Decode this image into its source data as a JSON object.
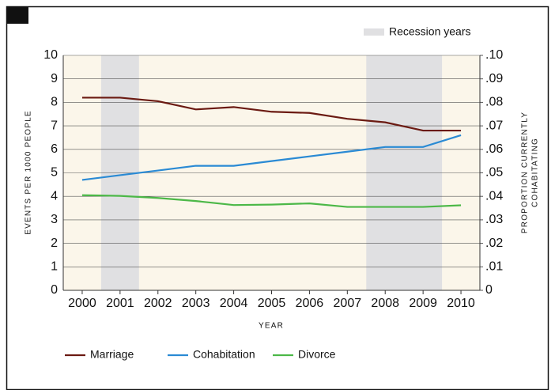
{
  "chart_data": {
    "type": "line",
    "x": [
      2000,
      2001,
      2002,
      2003,
      2004,
      2005,
      2006,
      2007,
      2008,
      2009,
      2010
    ],
    "xlim": [
      1999.5,
      2010.5
    ],
    "xticks": [
      2000,
      2001,
      2002,
      2003,
      2004,
      2005,
      2006,
      2007,
      2008,
      2009,
      2010
    ],
    "xlabel": "YEAR",
    "ylabel": "EVENTS PER 1000 PEOPLE",
    "y2label": [
      "PROPORTION CURRENTLY",
      "COHABITATING"
    ],
    "ylim": [
      0,
      10
    ],
    "yticks": [
      0,
      1,
      2,
      3,
      4,
      5,
      6,
      7,
      8,
      9,
      10
    ],
    "y2lim": [
      0,
      0.1
    ],
    "y2ticks": [
      0,
      {
        "value": 0.01,
        "label": ".01"
      },
      {
        "value": 0.02,
        "label": ".02"
      },
      {
        "value": 0.03,
        "label": ".03"
      },
      {
        "value": 0.04,
        "label": ".04"
      },
      {
        "value": 0.05,
        "label": ".05"
      },
      {
        "value": 0.06,
        "label": ".06"
      },
      {
        "value": 0.07,
        "label": ".07"
      },
      {
        "value": 0.08,
        "label": ".08"
      },
      {
        "value": 0.09,
        "label": ".09"
      },
      {
        "value": 0.1,
        "label": ".10"
      }
    ],
    "grid": true,
    "shaded": {
      "name": "Recession years",
      "color": "#e0e0e2",
      "ranges": [
        [
          2000.5,
          2001.5
        ],
        [
          2007.5,
          2009.5
        ]
      ]
    },
    "series": [
      {
        "name": "Marriage",
        "color": "#6b1a12",
        "values": [
          8.2,
          8.2,
          8.05,
          7.7,
          7.8,
          7.6,
          7.55,
          7.3,
          7.15,
          6.8,
          6.8
        ]
      },
      {
        "name": "Cohabitation",
        "color": "#2a8ad4",
        "axis": "y2",
        "values": [
          0.047,
          0.049,
          0.051,
          0.053,
          0.053,
          0.055,
          0.057,
          0.059,
          0.061,
          0.061,
          0.066
        ]
      },
      {
        "name": "Divorce",
        "color": "#4cb848",
        "values": [
          4.05,
          4.02,
          3.93,
          3.8,
          3.63,
          3.65,
          3.7,
          3.55,
          3.55,
          3.55,
          3.62
        ]
      }
    ]
  }
}
